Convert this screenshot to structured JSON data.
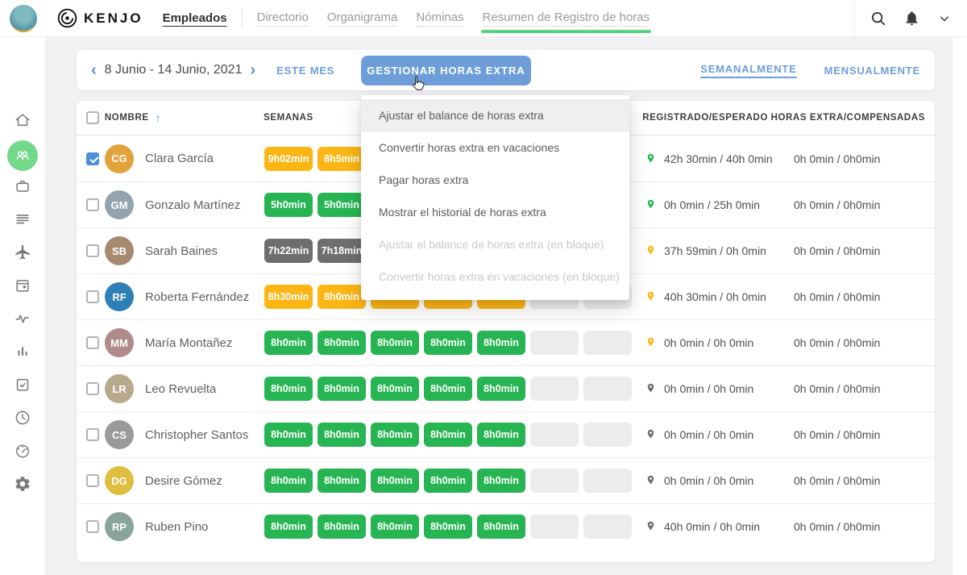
{
  "navbar": {
    "logo_text": "KENJO",
    "main_tab": "Empleados",
    "links": [
      {
        "label": "Directorio",
        "active": false
      },
      {
        "label": "Organigrama",
        "active": false
      },
      {
        "label": "Nóminas",
        "active": false
      },
      {
        "label": "Resumen de Registro de horas",
        "active": true
      }
    ],
    "icons": [
      "search-icon",
      "bell-icon",
      "chevron-down-icon"
    ]
  },
  "sidebar": {
    "items": [
      {
        "name": "home",
        "icon": "home-icon",
        "symbol": "i-home",
        "active": false
      },
      {
        "name": "employees",
        "icon": "people-icon",
        "symbol": "i-people",
        "active": true
      },
      {
        "name": "briefcase",
        "icon": "briefcase-icon",
        "symbol": "i-case",
        "active": false
      },
      {
        "name": "list",
        "icon": "list-icon",
        "symbol": "i-list",
        "active": false
      },
      {
        "name": "travel",
        "icon": "plane-icon",
        "symbol": "i-plane",
        "active": false
      },
      {
        "name": "calendar",
        "icon": "calendar-icon",
        "symbol": "i-cal",
        "active": false
      },
      {
        "name": "activity",
        "icon": "activity-icon",
        "symbol": "i-pulse",
        "active": false
      },
      {
        "name": "reports",
        "icon": "bar-chart-icon",
        "symbol": "i-bars",
        "active": false
      },
      {
        "name": "tasks",
        "icon": "clipboard-check-icon",
        "symbol": "i-clip",
        "active": false
      },
      {
        "name": "time",
        "icon": "clock-icon",
        "symbol": "i-clock",
        "active": false
      },
      {
        "name": "gauge",
        "icon": "gauge-icon",
        "symbol": "i-gauge",
        "active": false
      },
      {
        "name": "settings",
        "icon": "gear-icon",
        "symbol": "i-gear",
        "active": false
      }
    ]
  },
  "toolbar": {
    "prev_label": "‹",
    "date_range": "8 Junio - 14 Junio, 2021",
    "next_label": "›",
    "this_month_label": "ESTE MES",
    "manage_button_label": "GESTIONAR HORAS EXTRA",
    "weekly_label": "SEMANALMENTE",
    "monthly_label": "MENSUALMENTE"
  },
  "dropdown": {
    "items": [
      {
        "label": "Ajustar el balance de horas extra",
        "state": "hover"
      },
      {
        "label": "Convertir horas extra en vacaciones",
        "state": "normal"
      },
      {
        "label": "Pagar horas extra",
        "state": "normal"
      },
      {
        "label": "Mostrar el historial de horas extra",
        "state": "normal"
      },
      {
        "label": "Ajustar el balance de horas extra (en bloque)",
        "state": "disabled"
      },
      {
        "label": "Convertir horas extra en vacaciones (en bloque)",
        "state": "disabled"
      }
    ]
  },
  "table": {
    "headers": {
      "name": "NOMBRE",
      "weeks": "SEMANAS",
      "registered": "REGISTRADO/ESPERADO",
      "overtime": "HORAS EXTRA/COMPENSADAS"
    },
    "rows": [
      {
        "name": "Clara García",
        "checked": true,
        "avatar_color": "#e2a23b",
        "chips": [
          {
            "label": "9h02min",
            "color": "yellow"
          },
          {
            "label": "8h5min",
            "color": "yellow"
          }
        ],
        "pin": "green",
        "registered": "42h 30min / 40h 0min",
        "overtime": "0h 0min / 0h0min"
      },
      {
        "name": "Gonzalo Martínez",
        "checked": false,
        "avatar_color": "#93a4ae",
        "chips": [
          {
            "label": "5h0min",
            "color": "green"
          },
          {
            "label": "5h0min",
            "color": "green"
          }
        ],
        "pin": "green",
        "registered": "0h 0min / 25h 0min",
        "overtime": "0h 0min / 0h0min"
      },
      {
        "name": "Sarah Baines",
        "checked": false,
        "avatar_color": "#a58a6f",
        "chips": [
          {
            "label": "7h22min",
            "color": "gray"
          },
          {
            "label": "7h18min",
            "color": "gray"
          }
        ],
        "pin": "yellow",
        "registered": "37h 59min / 0h 0min",
        "overtime": "0h 0min / 0h0min"
      },
      {
        "name": "Roberta Fernández",
        "checked": false,
        "avatar_color": "#2e7fb5",
        "chips": [
          {
            "label": "8h30min",
            "color": "yellow"
          },
          {
            "label": "8h0min",
            "color": "yellow"
          },
          {
            "label": "",
            "color": "yellow"
          },
          {
            "label": "",
            "color": "yellow"
          },
          {
            "label": "",
            "color": "yellow"
          },
          {
            "label": "",
            "color": "empty"
          },
          {
            "label": "",
            "color": "empty"
          }
        ],
        "pin": "yellow",
        "registered": "40h 30min / 0h 0min",
        "overtime": "0h 0min / 0h0min"
      },
      {
        "name": "María Montañez",
        "checked": false,
        "avatar_color": "#b08b8b",
        "chips": [
          {
            "label": "8h0min",
            "color": "green"
          },
          {
            "label": "8h0min",
            "color": "green"
          },
          {
            "label": "8h0min",
            "color": "green"
          },
          {
            "label": "8h0min",
            "color": "green"
          },
          {
            "label": "8h0min",
            "color": "green"
          },
          {
            "label": "",
            "color": "empty"
          },
          {
            "label": "",
            "color": "empty"
          }
        ],
        "pin": "yellow",
        "registered": "0h 0min / 0h 0min",
        "overtime": "0h 0min / 0h0min"
      },
      {
        "name": "Leo Revuelta",
        "checked": false,
        "avatar_color": "#b9a98c",
        "chips": [
          {
            "label": "8h0min",
            "color": "green"
          },
          {
            "label": "8h0min",
            "color": "green"
          },
          {
            "label": "8h0min",
            "color": "green"
          },
          {
            "label": "8h0min",
            "color": "green"
          },
          {
            "label": "8h0min",
            "color": "green"
          },
          {
            "label": "",
            "color": "empty"
          },
          {
            "label": "",
            "color": "empty"
          }
        ],
        "pin": "gray",
        "registered": "0h 0min / 0h 0min",
        "overtime": "0h 0min / 0h0min"
      },
      {
        "name": "Christopher Santos",
        "checked": false,
        "avatar_color": "#9a9a9a",
        "chips": [
          {
            "label": "8h0min",
            "color": "green"
          },
          {
            "label": "8h0min",
            "color": "green"
          },
          {
            "label": "8h0min",
            "color": "green"
          },
          {
            "label": "8h0min",
            "color": "green"
          },
          {
            "label": "8h0min",
            "color": "green"
          },
          {
            "label": "",
            "color": "empty"
          },
          {
            "label": "",
            "color": "empty"
          }
        ],
        "pin": "gray",
        "registered": "0h 0min / 0h 0min",
        "overtime": "0h 0min / 0h0min"
      },
      {
        "name": "Desire Gómez",
        "checked": false,
        "avatar_color": "#ddbe3f",
        "chips": [
          {
            "label": "8h0min",
            "color": "green"
          },
          {
            "label": "8h0min",
            "color": "green"
          },
          {
            "label": "8h0min",
            "color": "green"
          },
          {
            "label": "8h0min",
            "color": "green"
          },
          {
            "label": "8h0min",
            "color": "green"
          },
          {
            "label": "",
            "color": "empty"
          },
          {
            "label": "",
            "color": "empty"
          }
        ],
        "pin": "gray",
        "registered": "0h 0min / 0h 0min",
        "overtime": "0h 0min / 0h0min"
      },
      {
        "name": "Ruben Pino",
        "checked": false,
        "avatar_color": "#8aa39b",
        "chips": [
          {
            "label": "8h0min",
            "color": "green"
          },
          {
            "label": "8h0min",
            "color": "green"
          },
          {
            "label": "8h0min",
            "color": "green"
          },
          {
            "label": "8h0min",
            "color": "green"
          },
          {
            "label": "8h0min",
            "color": "green"
          },
          {
            "label": "",
            "color": "empty"
          },
          {
            "label": "",
            "color": "empty"
          }
        ],
        "pin": "gray",
        "registered": "40h 0min / 0h 0min",
        "overtime": "0h 0min / 0h0min"
      }
    ]
  },
  "colors": {
    "chip_yellow": "#fcb614",
    "chip_green": "#26b552",
    "chip_gray": "#6e6e6e",
    "chip_empty": "#ececec",
    "pin_green": "#2cb94e",
    "pin_yellow": "#fcb614",
    "pin_gray": "#6f6f6f",
    "accent_blue": "#6d9eda",
    "accent_green": "#5ad37e"
  }
}
